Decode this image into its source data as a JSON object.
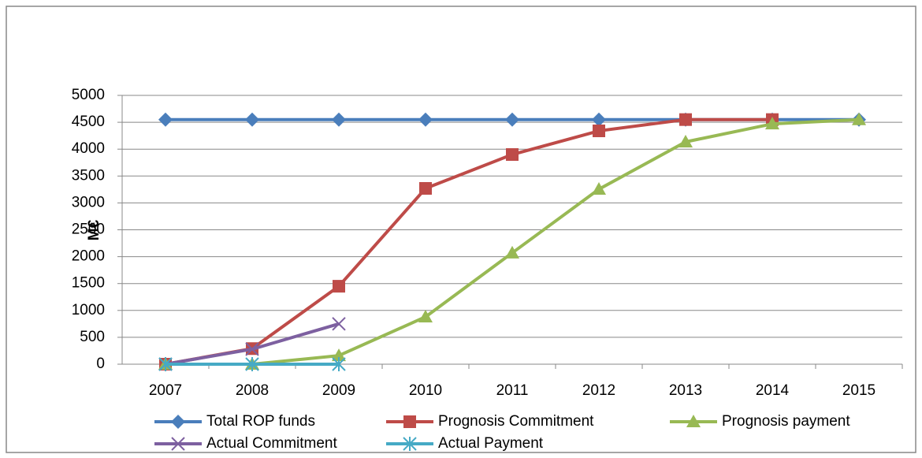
{
  "chart_data": {
    "type": "line",
    "y_label": "M€",
    "categories": [
      "2007",
      "2008",
      "2009",
      "2010",
      "2011",
      "2012",
      "2013",
      "2014",
      "2015"
    ],
    "series": [
      {
        "name": "Total ROP funds",
        "color": "#4a7ebb",
        "marker": "diamond",
        "values": [
          4550,
          4550,
          4550,
          4550,
          4550,
          4550,
          4550,
          4550,
          4550
        ]
      },
      {
        "name": "Prognosis Commitment",
        "color": "#be4b48",
        "marker": "square",
        "values": [
          0,
          290,
          1450,
          3270,
          3900,
          4340,
          4550,
          4550,
          null
        ]
      },
      {
        "name": "Prognosis payment",
        "color": "#98b954",
        "marker": "triangle",
        "values": [
          0,
          0,
          160,
          880,
          2070,
          3255,
          4135,
          4470,
          4550
        ]
      },
      {
        "name": "Actual Commitment",
        "color": "#7d60a0",
        "marker": "x",
        "values": [
          0,
          280,
          750,
          null,
          null,
          null,
          null,
          null,
          null
        ]
      },
      {
        "name": "Actual Payment",
        "color": "#46aac5",
        "marker": "star",
        "values": [
          0,
          0,
          0,
          null,
          null,
          null,
          null,
          null,
          null
        ]
      }
    ],
    "ylim": [
      0,
      5000
    ],
    "yticks": [
      0,
      500,
      1000,
      1500,
      2000,
      2500,
      3000,
      3500,
      4000,
      4500,
      5000
    ],
    "grid": true,
    "legend": "bottom"
  }
}
